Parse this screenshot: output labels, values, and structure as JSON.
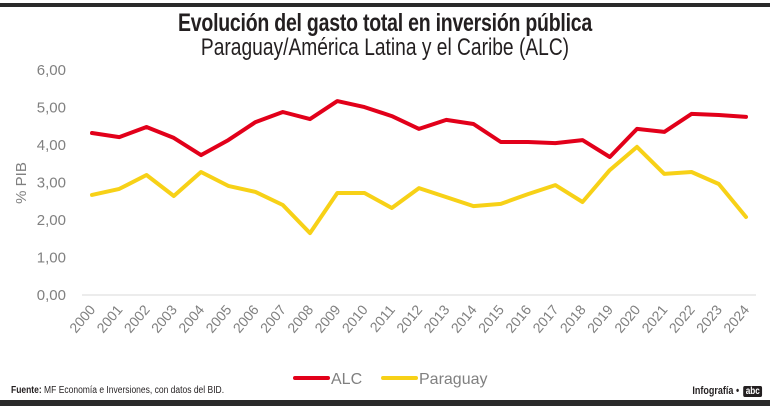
{
  "header": {
    "title": "Evolución del gasto total en inversión pública",
    "subtitle": "Paraguay/América Latina y el Caribe (ALC)"
  },
  "footer": {
    "source_label": "Fuente:",
    "source_text": "MF Economía e Inversiones, con datos del BID.",
    "credit_label": "Infografía •",
    "brand": "abc"
  },
  "chart_data": {
    "type": "line",
    "title": "Evolución del gasto total en inversión pública",
    "subtitle": "Paraguay/América Latina y el Caribe (ALC)",
    "xlabel": "",
    "ylabel": "% PIB",
    "ylim": [
      0,
      6
    ],
    "yticks": [
      0,
      1,
      2,
      3,
      4,
      5,
      6
    ],
    "ytick_labels": [
      "0,00",
      "1,00",
      "2,00",
      "3,00",
      "4,00",
      "5,00",
      "6,00"
    ],
    "grid": false,
    "legend": "bottom-center",
    "x": [
      "2000",
      "2001",
      "2002",
      "2003",
      "2004",
      "2005",
      "2006",
      "2007",
      "2008",
      "2009",
      "2010",
      "2011",
      "2012",
      "2013",
      "2014",
      "2015",
      "2016",
      "2017",
      "2018",
      "2019",
      "2020",
      "2021",
      "2022",
      "2023",
      "2024"
    ],
    "series": [
      {
        "name": "ALC",
        "color": "#e2001a",
        "values": [
          4.32,
          4.21,
          4.48,
          4.19,
          3.73,
          4.13,
          4.61,
          4.88,
          4.69,
          5.17,
          5.01,
          4.77,
          4.43,
          4.67,
          4.56,
          4.08,
          4.08,
          4.05,
          4.13,
          3.68,
          4.43,
          4.35,
          4.83,
          4.8,
          4.75
        ]
      },
      {
        "name": "Paraguay",
        "color": "#f7d117",
        "values": [
          2.67,
          2.83,
          3.2,
          2.64,
          3.28,
          2.91,
          2.75,
          2.4,
          1.65,
          2.72,
          2.72,
          2.32,
          2.85,
          2.61,
          2.37,
          2.43,
          2.69,
          2.93,
          2.48,
          3.33,
          3.95,
          3.23,
          3.28,
          2.96,
          2.08
        ]
      }
    ]
  }
}
